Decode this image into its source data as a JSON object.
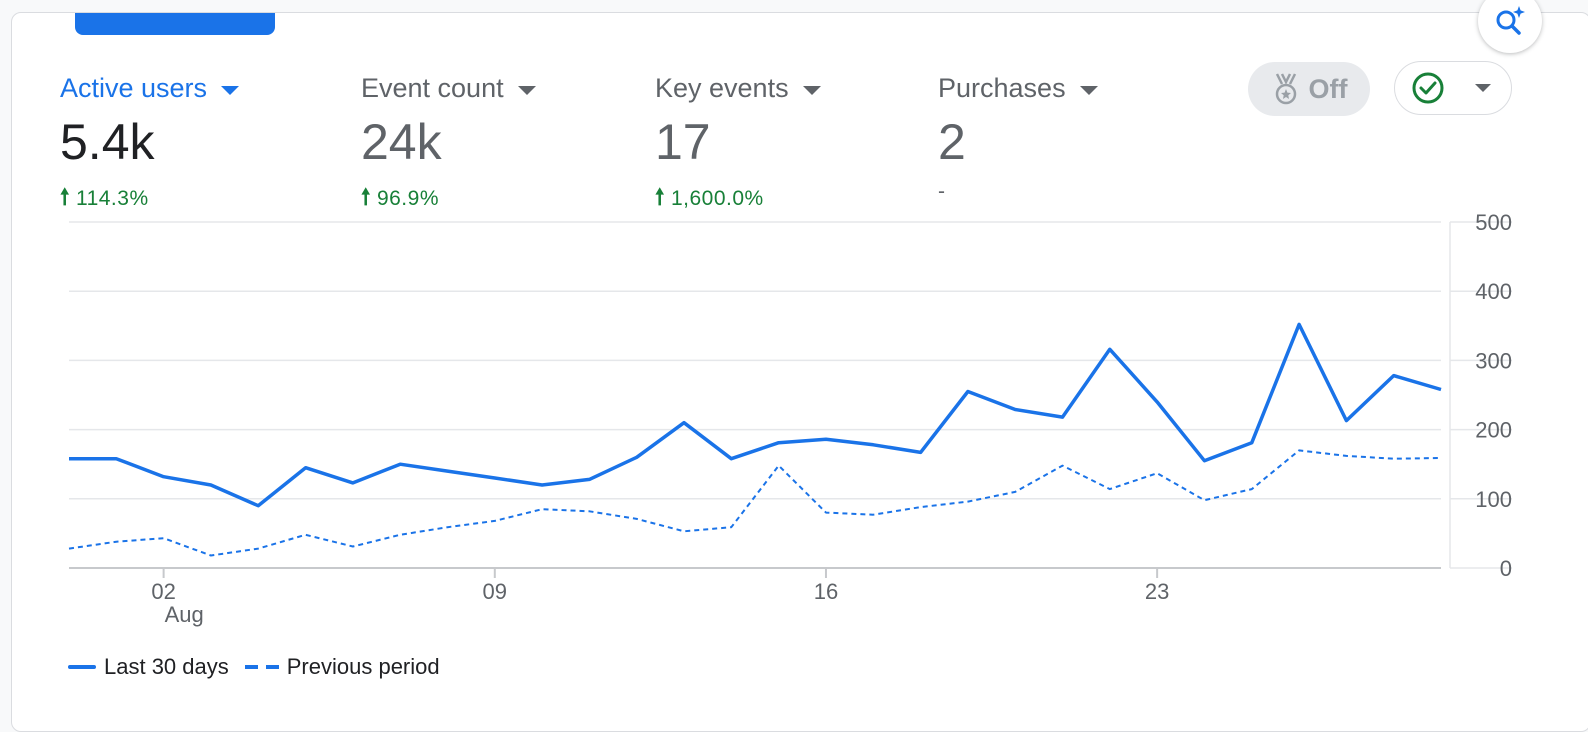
{
  "metrics": [
    {
      "label": "Active users",
      "value": "5.4k",
      "change": "114.3%",
      "direction": "up",
      "active": true
    },
    {
      "label": "Event count",
      "value": "24k",
      "change": "96.9%",
      "direction": "up",
      "active": false
    },
    {
      "label": "Key events",
      "value": "17",
      "change": "1,600.0%",
      "direction": "up",
      "active": false
    },
    {
      "label": "Purchases",
      "value": "2",
      "change": "-",
      "direction": "none",
      "active": false
    }
  ],
  "toggle": {
    "label": "Off",
    "icon": "award-medal-icon"
  },
  "status": {
    "icon": "check-circle-icon"
  },
  "insights": {
    "icon": "sparkle-search-icon"
  },
  "colors": {
    "primary": "#1a73e8",
    "positive": "#188038",
    "muted": "#5f6368"
  },
  "chart_data": {
    "type": "line",
    "ylim": [
      0,
      500
    ],
    "yticks": [
      "500",
      "400",
      "300",
      "200",
      "100",
      "0"
    ],
    "xticks": [
      {
        "day": 3,
        "label": "02",
        "sub": "Aug"
      },
      {
        "day": 10,
        "label": "09",
        "sub": ""
      },
      {
        "day": 17,
        "label": "16",
        "sub": ""
      },
      {
        "day": 24,
        "label": "23",
        "sub": ""
      }
    ],
    "series": [
      {
        "name": "Last 30 days",
        "style": "solid",
        "values": [
          158,
          158,
          132,
          120,
          90,
          145,
          123,
          150,
          140,
          130,
          120,
          128,
          160,
          210,
          158,
          181,
          186,
          178,
          167,
          255,
          229,
          218,
          316,
          240,
          155,
          181,
          352,
          213,
          278,
          258
        ]
      },
      {
        "name": "Previous period",
        "style": "dashed",
        "values": [
          28,
          38,
          43,
          18,
          28,
          48,
          31,
          48,
          59,
          68,
          85,
          82,
          71,
          53,
          59,
          148,
          80,
          77,
          88,
          96,
          110,
          148,
          114,
          137,
          98,
          114,
          170,
          162,
          158,
          159
        ]
      }
    ]
  }
}
